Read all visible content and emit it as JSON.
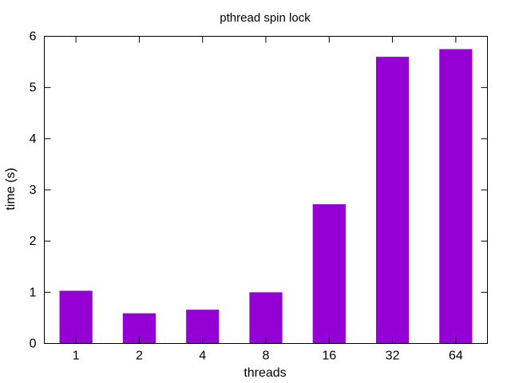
{
  "chart_data": {
    "type": "bar",
    "title": "pthread spin lock",
    "xlabel": "threads",
    "ylabel": "time (s)",
    "categories": [
      "1",
      "2",
      "4",
      "8",
      "16",
      "32",
      "64"
    ],
    "values": [
      1.03,
      0.59,
      0.66,
      1.0,
      2.72,
      5.6,
      5.75
    ],
    "ylim": [
      0,
      6
    ],
    "yticks": [
      "0",
      "1",
      "2",
      "3",
      "4",
      "5",
      "6"
    ],
    "grid": false,
    "legend": "none",
    "bar_color": "#9400d3"
  }
}
